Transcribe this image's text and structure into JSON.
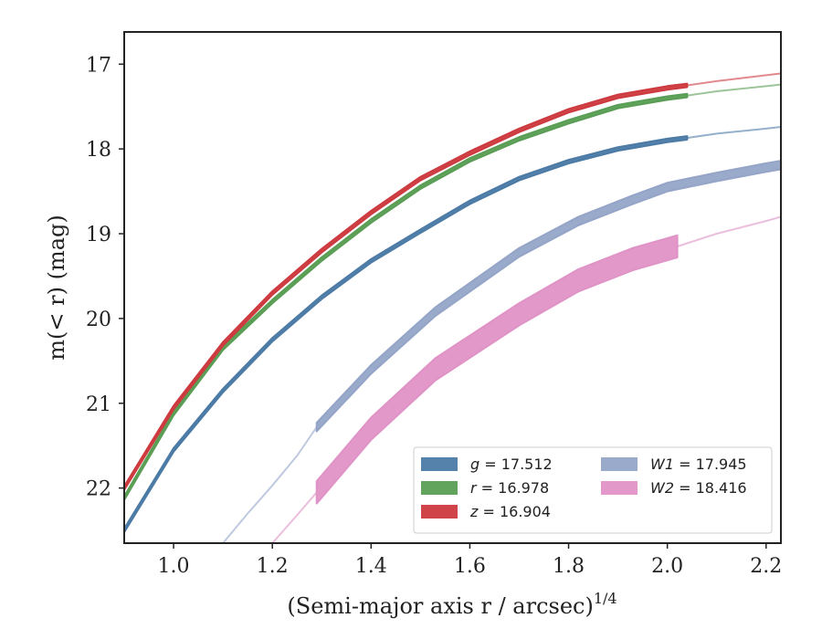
{
  "chart_data": {
    "type": "line",
    "xlabel": "(Semi-major axis r / arcsec)",
    "xlabel_sup": "1/4",
    "ylabel": "m(< r) (mag)",
    "xlim": [
      0.9,
      2.23
    ],
    "ylim": [
      22.65,
      16.62
    ],
    "y_inverted": true,
    "x_ticks": [
      1.0,
      1.2,
      1.4,
      1.6,
      1.8,
      2.0,
      2.2
    ],
    "x_tick_labels": [
      "1.0",
      "1.2",
      "1.4",
      "1.6",
      "1.8",
      "2.0",
      "2.2"
    ],
    "y_ticks": [
      17,
      18,
      19,
      20,
      21,
      22
    ],
    "y_tick_labels": [
      "17",
      "18",
      "19",
      "20",
      "21",
      "22"
    ],
    "grid": false,
    "legend_position": "lower-right",
    "legend_columns": 2,
    "series": [
      {
        "name": "g = 17.512",
        "label_var": "g",
        "label_val": "= 17.512",
        "color": "#4c7ba6",
        "x": [
          0.9,
          1.0,
          1.1,
          1.2,
          1.3,
          1.4,
          1.5,
          1.6,
          1.7,
          1.8,
          1.9,
          2.0,
          2.04
        ],
        "y": [
          22.5,
          21.55,
          20.85,
          20.25,
          19.75,
          19.32,
          18.97,
          18.63,
          18.35,
          18.15,
          18.0,
          17.9,
          17.87
        ],
        "halfwidth": 0.02,
        "x_ext": [
          2.04,
          2.1,
          2.2,
          2.23
        ],
        "y_ext": [
          17.87,
          17.82,
          17.76,
          17.74
        ]
      },
      {
        "name": "r = 16.978",
        "label_var": "r",
        "label_val": "= 16.978",
        "color": "#5a9e55",
        "x": [
          0.9,
          1.0,
          1.1,
          1.2,
          1.3,
          1.4,
          1.5,
          1.6,
          1.7,
          1.8,
          1.9,
          2.0,
          2.04
        ],
        "y": [
          22.12,
          21.12,
          20.35,
          19.8,
          19.3,
          18.85,
          18.45,
          18.13,
          17.88,
          17.68,
          17.5,
          17.4,
          17.37
        ],
        "halfwidth": 0.02,
        "x_ext": [
          2.04,
          2.1,
          2.2,
          2.23
        ],
        "y_ext": [
          17.37,
          17.32,
          17.26,
          17.24
        ]
      },
      {
        "name": "z = 16.904",
        "label_var": "z",
        "label_val": "= 16.904",
        "color": "#cd3a3f",
        "x": [
          0.9,
          1.0,
          1.1,
          1.2,
          1.3,
          1.4,
          1.5,
          1.6,
          1.7,
          1.8,
          1.9,
          2.0,
          2.04
        ],
        "y": [
          22.0,
          21.05,
          20.3,
          19.7,
          19.2,
          18.75,
          18.35,
          18.05,
          17.78,
          17.55,
          17.38,
          17.28,
          17.25
        ],
        "halfwidth": 0.02,
        "x_ext": [
          2.04,
          2.1,
          2.2,
          2.23
        ],
        "y_ext": [
          17.25,
          17.2,
          17.13,
          17.11
        ]
      },
      {
        "name": "W1 = 17.945",
        "label_var": "W1",
        "label_val": "= 17.945",
        "color": "#95a5c8",
        "x": [
          1.29,
          1.4,
          1.53,
          1.7,
          1.82,
          1.93,
          2.0,
          2.1,
          2.2,
          2.23
        ],
        "y": [
          21.28,
          20.6,
          19.92,
          19.22,
          18.85,
          18.6,
          18.45,
          18.33,
          18.22,
          18.19
        ],
        "halfwidth": 0.05,
        "x_ext": [
          1.1,
          1.15,
          1.2,
          1.25,
          1.29
        ],
        "y_ext": [
          22.65,
          22.3,
          21.97,
          21.62,
          21.28
        ]
      },
      {
        "name": "W2 = 18.416",
        "label_var": "W2",
        "label_val": "= 18.416",
        "color": "#e093c6",
        "x": [
          1.29,
          1.4,
          1.53,
          1.7,
          1.82,
          1.93,
          2.02
        ],
        "y": [
          22.05,
          21.3,
          20.6,
          19.95,
          19.55,
          19.3,
          19.15
        ],
        "halfwidth": 0.13,
        "x_ext": [
          1.2,
          1.25,
          1.29
        ],
        "y_ext": [
          22.65,
          22.32,
          22.05
        ],
        "x_ext2": [
          2.02,
          2.1,
          2.2,
          2.23
        ],
        "y_ext2": [
          19.15,
          19.0,
          18.85,
          18.8
        ]
      }
    ]
  }
}
